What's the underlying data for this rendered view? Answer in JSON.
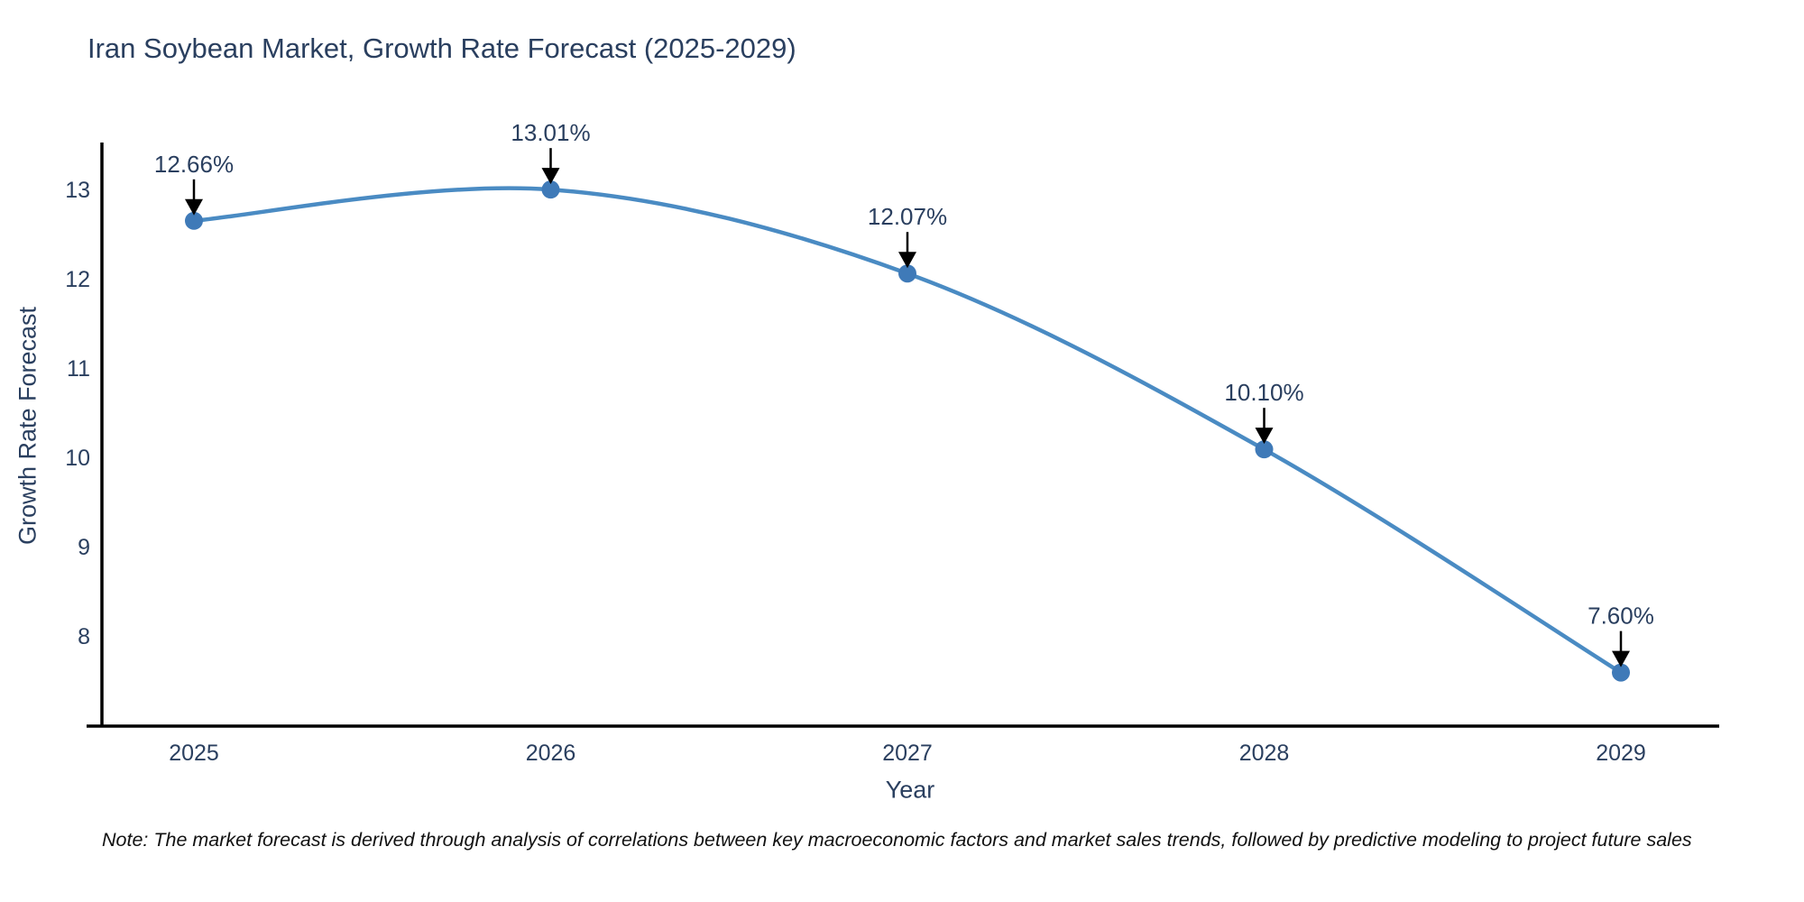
{
  "chart_data": {
    "type": "line",
    "title": "Iran Soybean Market, Growth Rate Forecast (2025-2029)",
    "xlabel": "Year",
    "ylabel": "Growth Rate Forecast",
    "categories": [
      "2025",
      "2026",
      "2027",
      "2028",
      "2029"
    ],
    "values": [
      12.66,
      13.01,
      12.07,
      10.1,
      7.6
    ],
    "point_labels": [
      "12.66%",
      "13.01%",
      "12.07%",
      "10.10%",
      "7.60%"
    ],
    "y_ticks": [
      8,
      9,
      10,
      11,
      12,
      13
    ],
    "ylim": [
      7.0,
      13.82
    ],
    "grid": false,
    "legend": "none",
    "line_shape": "spline",
    "line_color": "#4a8bc3",
    "marker_color": "#3f7ab8",
    "axis_color": "#000000",
    "label_color": "#2a3f5f",
    "annotation_text_color": "#2a3f5f",
    "annotation_arrow_color": "#000000"
  },
  "note": "Note: The market forecast is derived through analysis of correlations between key macroeconomic factors and market sales trends, followed by predictive modeling to project future sales"
}
